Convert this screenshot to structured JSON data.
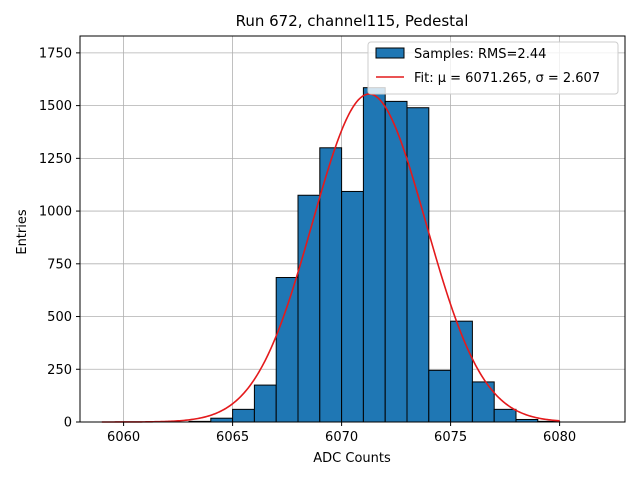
{
  "chart_data": {
    "type": "bar",
    "title": "Run 672, channel115, Pedestal",
    "xlabel": "ADC Counts",
    "ylabel": "Entries",
    "xlim": [
      6058,
      6083
    ],
    "ylim": [
      0,
      1830
    ],
    "x_ticks": [
      6060,
      6065,
      6070,
      6075,
      6080
    ],
    "y_ticks": [
      0,
      250,
      500,
      750,
      1000,
      1250,
      1500,
      1750
    ],
    "grid": true,
    "legend_position": "upper-right",
    "histogram": {
      "name": "Samples: RMS=2.44",
      "color": "#1f77b4",
      "edgecolor": "#000000",
      "bin_edges": [
        6059,
        6060,
        6061,
        6062,
        6063,
        6064,
        6065,
        6066,
        6067,
        6068,
        6069,
        6070,
        6071,
        6072,
        6073,
        6074,
        6075,
        6076,
        6077,
        6078,
        6079,
        6080
      ],
      "counts": [
        0,
        0,
        0,
        0,
        3,
        18,
        60,
        175,
        685,
        1075,
        1300,
        1093,
        1585,
        1520,
        1490,
        245,
        478,
        190,
        60,
        12,
        3
      ]
    },
    "fit": {
      "name": "Fit: μ = 6071.265, σ = 2.607",
      "color": "#e41a1c",
      "mu": 6071.265,
      "sigma": 2.607,
      "amplitude": 1555,
      "x_range": [
        6059,
        6080
      ]
    }
  }
}
